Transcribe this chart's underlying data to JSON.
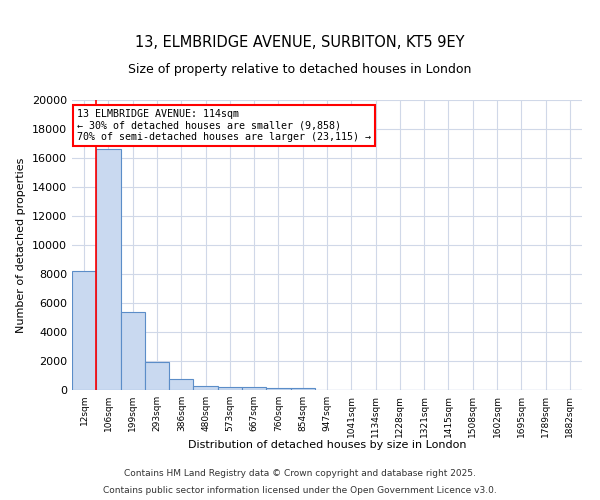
{
  "title1": "13, ELMBRIDGE AVENUE, SURBITON, KT5 9EY",
  "title2": "Size of property relative to detached houses in London",
  "xlabel": "Distribution of detached houses by size in London",
  "ylabel": "Number of detached properties",
  "bin_labels": [
    "12sqm",
    "106sqm",
    "199sqm",
    "293sqm",
    "386sqm",
    "480sqm",
    "573sqm",
    "667sqm",
    "760sqm",
    "854sqm",
    "947sqm",
    "1041sqm",
    "1134sqm",
    "1228sqm",
    "1321sqm",
    "1415sqm",
    "1508sqm",
    "1602sqm",
    "1695sqm",
    "1789sqm",
    "1882sqm"
  ],
  "bar_heights": [
    8200,
    16600,
    5400,
    1900,
    750,
    300,
    220,
    180,
    150,
    120,
    0,
    0,
    0,
    0,
    0,
    0,
    0,
    0,
    0,
    0,
    0
  ],
  "bar_color": "#c9d9f0",
  "bar_edge_color": "#5b8dc8",
  "property_line_x": 1.0,
  "annotation_text": "13 ELMBRIDGE AVENUE: 114sqm\n← 30% of detached houses are smaller (9,858)\n70% of semi-detached houses are larger (23,115) →",
  "footer1": "Contains HM Land Registry data © Crown copyright and database right 2025.",
  "footer2": "Contains public sector information licensed under the Open Government Licence v3.0.",
  "background_color": "#ffffff",
  "grid_color": "#d0d8e8",
  "ylim": [
    0,
    20000
  ],
  "yticks": [
    0,
    2000,
    4000,
    6000,
    8000,
    10000,
    12000,
    14000,
    16000,
    18000,
    20000
  ]
}
